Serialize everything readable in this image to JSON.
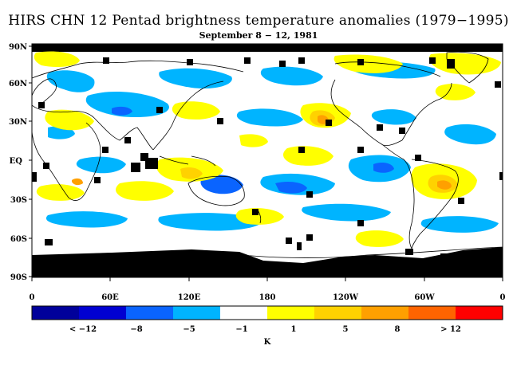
{
  "title": "HIRS CHN 12 Pentad brightness temperature anomalies (1979−1995)",
  "subtitle": "September 8 − 12, 1981",
  "lat_labels": [
    "90N",
    "60N",
    "30N",
    "EQ",
    "30S",
    "60S",
    "90S"
  ],
  "lon_labels": [
    "0",
    "60E",
    "120E",
    "180",
    "120W",
    "60W",
    "0"
  ],
  "legend": {
    "colors": [
      "#00009b",
      "#0000d2",
      "#0a64ff",
      "#00b4ff",
      "#ffffff",
      "#ffff00",
      "#ffd200",
      "#ffa000",
      "#ff6400",
      "#ff0000"
    ],
    "tick_labels": [
      "< −12",
      "−8",
      "−5",
      "−1",
      "1",
      "5",
      "8",
      "> 12"
    ],
    "unit": "K"
  },
  "colors": {
    "missing": "#000000",
    "coast": "#000000"
  }
}
